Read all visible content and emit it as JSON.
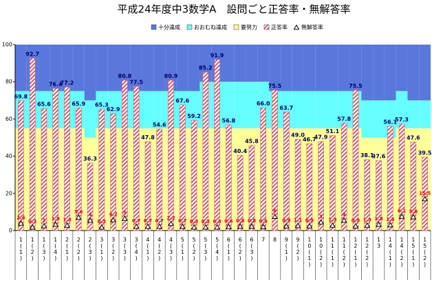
{
  "chart_data": {
    "type": "bar",
    "title": "平成24年度中3数学A　設問ごと正答率・無解答率",
    "categories": [
      "1(1)",
      "1(2)",
      "1(3)",
      "1(4)",
      "2(1)",
      "2(2)",
      "2(3)",
      "3(1)",
      "3(2)",
      "3(3)",
      "3(4)",
      "4(1)",
      "4(2)",
      "4(3)",
      "5(1)",
      "5(2)",
      "5(3)",
      "5(4)",
      "6(1)",
      "6(2)",
      "6(3)",
      "7",
      "8",
      "9(1)",
      "9(2)",
      "10(1)",
      "10(2)",
      "11(1)",
      "11(2)",
      "12(1)",
      "12(2)",
      "13",
      "14(1)",
      "14(2)",
      "15(1)",
      "15(2)"
    ],
    "series": [
      {
        "name": "十分達成",
        "color": "#5a78dc",
        "role": "band",
        "values": [
          25,
          25,
          25,
          25,
          25,
          25,
          30,
          25,
          25,
          25,
          25,
          25,
          25,
          25,
          25,
          25,
          20,
          20,
          20,
          20,
          20,
          20,
          25,
          25,
          25,
          25,
          25,
          25,
          25,
          25,
          30,
          30,
          30,
          25,
          30,
          30
        ]
      },
      {
        "name": "おおむね達成",
        "color": "#66ffff",
        "role": "band",
        "values": [
          20,
          20,
          20,
          20,
          20,
          20,
          20,
          20,
          20,
          20,
          20,
          20,
          20,
          20,
          20,
          20,
          25,
          25,
          25,
          25,
          25,
          25,
          20,
          20,
          20,
          20,
          20,
          20,
          20,
          20,
          20,
          20,
          20,
          20,
          15,
          15
        ]
      },
      {
        "name": "要努力",
        "color": "#ffff99",
        "role": "band",
        "values": [
          55,
          55,
          55,
          55,
          55,
          55,
          50,
          55,
          55,
          55,
          55,
          55,
          55,
          55,
          55,
          55,
          55,
          55,
          55,
          55,
          55,
          55,
          55,
          55,
          55,
          55,
          55,
          55,
          55,
          55,
          50,
          50,
          50,
          55,
          55,
          55
        ]
      },
      {
        "name": "正答率",
        "color": "#d06070",
        "role": "bar",
        "values": [
          69.8,
          92.7,
          65.6,
          76.4,
          77.2,
          65.9,
          36.3,
          65.3,
          62.9,
          80.8,
          77.5,
          47.8,
          54.6,
          80.9,
          67.6,
          59.2,
          85.2,
          91.9,
          56.8,
          40.4,
          45.8,
          66.0,
          75.5,
          63.7,
          49.0,
          46.7,
          47.9,
          51.1,
          57.8,
          75.5,
          38.1,
          37.6,
          56.1,
          57.3,
          47.6,
          39.5
        ],
        "value_labels": [
          "69.8",
          "92.7",
          "65.6",
          "76.4",
          "77.2",
          "65.9",
          "36.3",
          "65.3",
          "62.9",
          "80.8",
          "77.5",
          "47.8",
          "54.6",
          "80.9",
          "67.6",
          "59.2",
          "85.2",
          "91.9",
          "56.8",
          "40.4",
          "45.8",
          "66.0",
          "75.5",
          "63.7",
          "49.0",
          "46.7",
          "47.9",
          "51.1",
          "57.8",
          "75.5",
          "38.1",
          "37.6",
          "56.1",
          "57.3",
          "47.6",
          "39.5"
        ]
      },
      {
        "name": "無解答率",
        "color": "#ff0000",
        "role": "marker",
        "values": [
          2.4,
          0.3,
          1.0,
          1.8,
          1.3,
          5.6,
          4.0,
          0.3,
          4.2,
          5.0,
          0.7,
          0.7,
          0.7,
          2.2,
          0.7,
          0.3,
          0.3,
          0.3,
          0.6,
          0.8,
          0.8,
          0.5,
          6.0,
          0.9,
          1.1,
          0.9,
          3.0,
          1.3,
          4.0,
          0.9,
          1.3,
          1.8,
          1.5,
          6.1,
          5.8,
          15.5
        ]
      }
    ],
    "ylim": [
      0,
      100
    ],
    "yticks": [
      0,
      20,
      40,
      60,
      80,
      100
    ]
  }
}
